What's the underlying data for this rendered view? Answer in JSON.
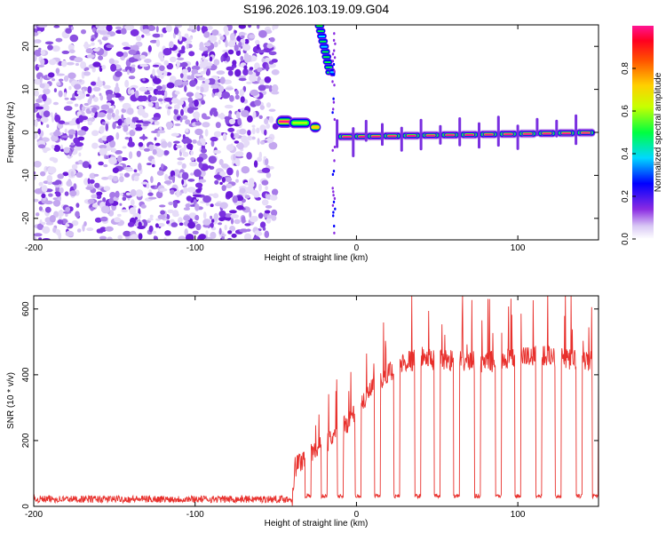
{
  "title": "S196.2026.103.19.09.G04",
  "chart_data": [
    {
      "type": "heatmap",
      "title": "S196.2026.103.19.09.G04",
      "xlabel": "Height of straight line (km)",
      "ylabel": "Frequency (Hz)",
      "xlim": [
        -200,
        150
      ],
      "ylim": [
        -25,
        25
      ],
      "x_ticks": [
        -200,
        -100,
        0,
        100
      ],
      "y_ticks": [
        -20,
        -10,
        0,
        10,
        20
      ],
      "colorbar": {
        "label": "Normalized spectral amplitude",
        "range": [
          0,
          1
        ],
        "ticks": [
          0.0,
          0.2,
          0.4,
          0.6,
          0.8
        ],
        "colors": [
          "#cfb8f0",
          "#8a2be2",
          "#0000ff",
          "#00e0ff",
          "#00ff00",
          "#ffff00",
          "#ff8000",
          "#ff0000",
          "#ff1493"
        ]
      },
      "noise_region": {
        "x": [
          -200,
          -50
        ],
        "description_value": "random low amplitude"
      },
      "features": [
        {
          "x": [
            -50,
            -25
          ],
          "freq": 2.5,
          "amplitude": 0.75
        },
        {
          "x": [
            -28,
            -22
          ],
          "freq": 1.5,
          "amplitude": 0.6
        },
        {
          "x": [
            -25,
            -12
          ],
          "freq": 22,
          "amplitude": 0.3
        },
        {
          "x": [
            -15,
            -12
          ],
          "freq": 14,
          "amplitude": 0.25
        },
        {
          "x": [
            -12,
            150
          ],
          "freq_start": -1,
          "freq_end": 0,
          "amplitude": 0.95
        }
      ]
    },
    {
      "type": "line",
      "xlabel": "Height of straight line (km)",
      "ylabel": "SNR (10 * v/v)",
      "xlim": [
        -200,
        150
      ],
      "ylim": [
        0,
        640
      ],
      "x_ticks": [
        -200,
        -100,
        0,
        100
      ],
      "y_ticks": [
        0,
        200,
        400,
        600
      ],
      "color": "#e8302c",
      "series": [
        {
          "name": "SNR",
          "profile": [
            [
              -200,
              22
            ],
            [
              -40,
              22
            ],
            [
              -38,
              120
            ],
            [
              -30,
              160
            ],
            [
              -20,
              190
            ],
            [
              -10,
              230
            ],
            [
              0,
              290
            ],
            [
              10,
              360
            ],
            [
              20,
              410
            ],
            [
              30,
              440
            ],
            [
              40,
              450
            ],
            [
              60,
              445
            ],
            [
              80,
              440
            ],
            [
              100,
              455
            ],
            [
              120,
              460
            ],
            [
              140,
              445
            ],
            [
              150,
              440
            ]
          ],
          "dips_x": [
            -30,
            -20,
            -10,
            1,
            13,
            25,
            38,
            50,
            62,
            75,
            88,
            100,
            113,
            125,
            138,
            148
          ],
          "dip_level": 25
        }
      ]
    }
  ]
}
